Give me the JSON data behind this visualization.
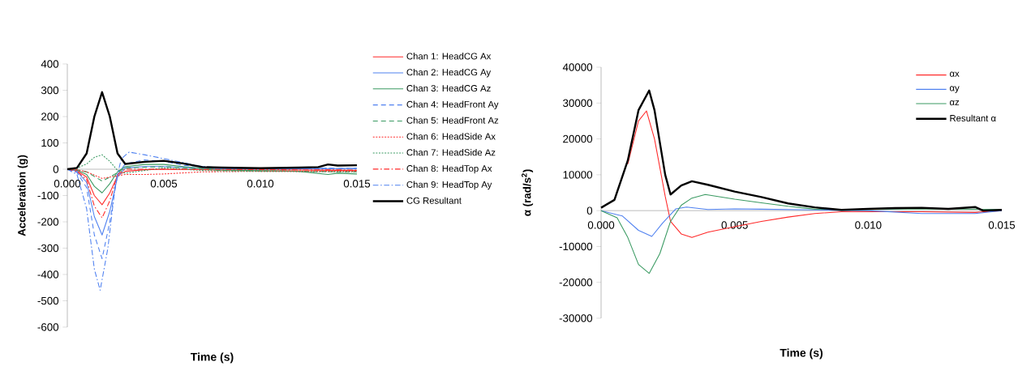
{
  "chart_data": [
    {
      "type": "line",
      "xlabel": "Time (s)",
      "ylabel": "Acceleration (g)",
      "xlim": [
        0,
        0.015
      ],
      "ylim": [
        -600,
        400
      ],
      "xticks": [
        {
          "value": 0,
          "label": "0.000"
        },
        {
          "value": 0.005,
          "label": "0.005"
        },
        {
          "value": 0.01,
          "label": "0.010"
        },
        {
          "value": 0.015,
          "label": "0.015"
        }
      ],
      "yticks": [
        -600,
        -500,
        -400,
        -300,
        -200,
        -100,
        0,
        100,
        200,
        300,
        400
      ],
      "legend": "right",
      "grid": false,
      "series": [
        {
          "name": "Chan 1: HeadCG Ax",
          "color": "#ff2a2a",
          "line_style": "solid",
          "x": [
            0,
            0.0005,
            0.001,
            0.0014,
            0.0018,
            0.0022,
            0.0026,
            0.003,
            0.004,
            0.005,
            0.008,
            0.012,
            0.015
          ],
          "values": [
            0,
            -5,
            -30,
            -100,
            -135,
            -90,
            -25,
            -8,
            -2,
            0,
            -3,
            -3,
            -5
          ]
        },
        {
          "name": "Chan 2: HeadCG Ay",
          "color": "#4f81f0",
          "line_style": "solid",
          "x": [
            0,
            0.0005,
            0.001,
            0.0014,
            0.0018,
            0.0022,
            0.0026,
            0.003,
            0.004,
            0.005,
            0.007,
            0.01,
            0.015
          ],
          "values": [
            0,
            -8,
            -50,
            -180,
            -250,
            -160,
            -30,
            5,
            10,
            10,
            3,
            0,
            3
          ]
        },
        {
          "name": "Chan 3: HeadCG Az",
          "color": "#3a9a62",
          "line_style": "solid",
          "x": [
            0,
            0.0005,
            0.001,
            0.0014,
            0.0018,
            0.0022,
            0.0026,
            0.003,
            0.004,
            0.005,
            0.006,
            0.008,
            0.012,
            0.0135,
            0.014,
            0.015
          ],
          "values": [
            0,
            -3,
            -20,
            -65,
            -90,
            -55,
            -10,
            10,
            18,
            18,
            10,
            -3,
            -8,
            -20,
            -15,
            -18
          ]
        },
        {
          "name": "Chan 4: HeadFront Ay",
          "color": "#4f81f0",
          "line_style": "dashed",
          "x": [
            0,
            0.0005,
            0.001,
            0.0014,
            0.0018,
            0.0022,
            0.0026,
            0.003,
            0.004,
            0.005,
            0.006,
            0.008,
            0.015
          ],
          "values": [
            0,
            -12,
            -70,
            -250,
            -340,
            -200,
            -20,
            20,
            35,
            30,
            15,
            5,
            3
          ]
        },
        {
          "name": "Chan 5: HeadFront Az",
          "color": "#3a9a62",
          "line_style": "dashed",
          "x": [
            0,
            0.0005,
            0.001,
            0.0018,
            0.0022,
            0.003,
            0.005,
            0.008,
            0.015
          ],
          "values": [
            0,
            -2,
            -10,
            -45,
            -30,
            5,
            10,
            -5,
            -10
          ]
        },
        {
          "name": "Chan 6: HeadSide Ax",
          "color": "#ff2a2a",
          "line_style": "dotted",
          "x": [
            0,
            0.0005,
            0.001,
            0.0018,
            0.0026,
            0.003,
            0.004,
            0.005,
            0.007,
            0.01,
            0.015
          ],
          "values": [
            0,
            -2,
            -10,
            -35,
            -25,
            -20,
            -20,
            -18,
            -10,
            -8,
            -8
          ]
        },
        {
          "name": "Chan 7: HeadSide Az",
          "color": "#3a9a62",
          "line_style": "dotted",
          "x": [
            0,
            0.0005,
            0.001,
            0.0014,
            0.0018,
            0.0022,
            0.0026,
            0.003,
            0.004,
            0.005,
            0.007,
            0.01,
            0.015
          ],
          "values": [
            0,
            4,
            20,
            45,
            55,
            30,
            -5,
            -15,
            -5,
            5,
            -5,
            -8,
            -10
          ]
        },
        {
          "name": "Chan 8: HeadTop Ax",
          "color": "#ff2a2a",
          "line_style": "dashdot",
          "x": [
            0,
            0.0005,
            0.001,
            0.0014,
            0.0018,
            0.0022,
            0.0026,
            0.003,
            0.005,
            0.015
          ],
          "values": [
            0,
            -8,
            -40,
            -140,
            -185,
            -120,
            -20,
            0,
            0,
            -3
          ]
        },
        {
          "name": "Chan 9: HeadTop Ay",
          "color": "#4f81f0",
          "line_style": "dashdot",
          "x": [
            0,
            0.0005,
            0.001,
            0.0014,
            0.0017,
            0.0021,
            0.0025,
            0.0028,
            0.0032,
            0.004,
            0.005,
            0.006,
            0.007,
            0.008,
            0.015
          ],
          "values": [
            0,
            -20,
            -150,
            -380,
            -460,
            -300,
            -50,
            40,
            65,
            55,
            40,
            25,
            10,
            5,
            2
          ]
        },
        {
          "name": "CG Resultant",
          "color": "#000000",
          "line_style": "solid",
          "x": [
            0,
            0.0005,
            0.001,
            0.0014,
            0.0018,
            0.0022,
            0.0026,
            0.003,
            0.004,
            0.005,
            0.006,
            0.007,
            0.008,
            0.01,
            0.012,
            0.013,
            0.0135,
            0.014,
            0.015
          ],
          "values": [
            0,
            5,
            60,
            200,
            293,
            200,
            60,
            20,
            28,
            32,
            22,
            8,
            6,
            4,
            6,
            8,
            18,
            14,
            15
          ]
        }
      ]
    },
    {
      "type": "line",
      "xlabel": "Time (s)",
      "ylabel": "α (rad/s$^{2}$)",
      "xlim": [
        0,
        0.015
      ],
      "ylim": [
        -30000,
        40000
      ],
      "xticks": [
        {
          "value": 0,
          "label": "0.000"
        },
        {
          "value": 0.005,
          "label": "0.005"
        },
        {
          "value": 0.01,
          "label": "0.010"
        },
        {
          "value": 0.015,
          "label": "0.015"
        }
      ],
      "yticks": [
        -30000,
        -20000,
        -10000,
        0,
        10000,
        20000,
        30000,
        40000
      ],
      "legend": "top right",
      "grid": false,
      "series": [
        {
          "name": "αx",
          "color": "#ff2a2a",
          "line_style": "solid",
          "x": [
            0.001,
            0.0014,
            0.0017,
            0.002,
            0.0024,
            0.0026,
            0.003,
            0.0034,
            0.004,
            0.005,
            0.006,
            0.007,
            0.008,
            0.009,
            0.01,
            0.012,
            0.014,
            0.015
          ],
          "values": [
            13000,
            25000,
            27800,
            20000,
            4000,
            -3000,
            -6500,
            -7500,
            -6000,
            -4500,
            -3000,
            -1800,
            -800,
            -300,
            -300,
            -300,
            -500,
            0
          ]
        },
        {
          "name": "αy",
          "color": "#4f81f0",
          "line_style": "solid",
          "x": [
            0,
            0.0008,
            0.0014,
            0.0019,
            0.0023,
            0.0028,
            0.0032,
            0.004,
            0.005,
            0.006,
            0.008,
            0.01,
            0.012,
            0.014,
            0.015
          ],
          "values": [
            0,
            -1500,
            -5500,
            -7200,
            -3500,
            500,
            1000,
            300,
            500,
            400,
            200,
            0,
            -800,
            -800,
            0
          ]
        },
        {
          "name": "αz",
          "color": "#3a9a62",
          "line_style": "solid",
          "x": [
            0,
            0.0006,
            0.001,
            0.0014,
            0.0018,
            0.0022,
            0.0026,
            0.003,
            0.0034,
            0.0039,
            0.005,
            0.006,
            0.007,
            0.008,
            0.01,
            0.012,
            0.015
          ],
          "values": [
            0,
            -2000,
            -7500,
            -15000,
            -17500,
            -12000,
            -3000,
            1500,
            3500,
            4500,
            3200,
            2200,
            1200,
            400,
            300,
            500,
            300
          ]
        },
        {
          "name": "Resultant α",
          "color": "#000000",
          "line_style": "solid",
          "x": [
            0,
            0.0005,
            0.001,
            0.0014,
            0.0018,
            0.002,
            0.0024,
            0.0026,
            0.003,
            0.0034,
            0.004,
            0.005,
            0.006,
            0.007,
            0.008,
            0.009,
            0.01,
            0.011,
            0.012,
            0.013,
            0.014,
            0.0143,
            0.015
          ],
          "values": [
            800,
            3000,
            14000,
            28000,
            33500,
            28000,
            10000,
            4500,
            7000,
            8200,
            7200,
            5300,
            3800,
            2000,
            900,
            200,
            500,
            700,
            800,
            500,
            1000,
            0,
            200
          ]
        }
      ]
    }
  ]
}
